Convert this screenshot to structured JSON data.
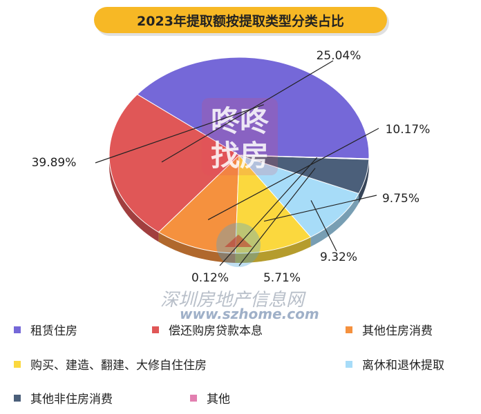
{
  "chart_data": {
    "type": "pie",
    "title": "2023年提取额按提取类型分类占比",
    "series": [
      {
        "name": "租赁住房",
        "value": 39.89,
        "label": "39.89%",
        "color": "#7568d8"
      },
      {
        "name": "偿还购房贷款本息",
        "value": 25.04,
        "label": "25.04%",
        "color": "#e05757"
      },
      {
        "name": "其他住房消费",
        "value": 10.17,
        "label": "10.17%",
        "color": "#f5913e"
      },
      {
        "name": "购买、建造、翻建、大修自住住房",
        "value": 9.75,
        "label": "9.75%",
        "color": "#fbd83e"
      },
      {
        "name": "离休和退休提取",
        "value": 9.32,
        "label": "9.32%",
        "color": "#a7dcf8"
      },
      {
        "name": "其他非住房消费",
        "value": 5.71,
        "label": "5.71%",
        "color": "#4b5f7a"
      },
      {
        "name": "其他",
        "value": 0.12,
        "label": "0.12%",
        "color": "#e27fb0"
      }
    ],
    "legend_position": "bottom"
  },
  "watermark": {
    "logo_text": "咚咚找房",
    "site_name": "深圳房地产信息网",
    "site_url": "www.szhome.com"
  }
}
